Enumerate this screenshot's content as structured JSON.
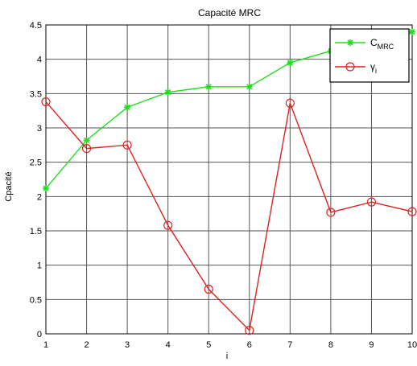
{
  "chart_data": {
    "type": "line",
    "title": "Capacité MRC",
    "xlabel": "i",
    "ylabel": "Cpacité",
    "xlim": [
      1,
      10
    ],
    "ylim": [
      0,
      4.5
    ],
    "grid": true,
    "legend_position": "top-right",
    "x": [
      1,
      2,
      3,
      4,
      5,
      6,
      7,
      8,
      9,
      10
    ],
    "x_ticks": [
      "1",
      "2",
      "3",
      "4",
      "5",
      "6",
      "7",
      "8",
      "9",
      "10"
    ],
    "y_ticks": [
      "0",
      "0.5",
      "1",
      "1.5",
      "2",
      "2.5",
      "3",
      "3.5",
      "4",
      "4.5"
    ],
    "series": [
      {
        "name": "C",
        "name_sub": "MRC",
        "color": "#22dd22",
        "marker": "star",
        "values": [
          2.12,
          2.82,
          3.3,
          3.52,
          3.6,
          3.6,
          3.95,
          4.12,
          4.24,
          4.4
        ]
      },
      {
        "name": "γ",
        "name_sub": "i",
        "color": "#dd2222",
        "marker": "circle",
        "values": [
          3.38,
          2.7,
          2.75,
          1.58,
          0.65,
          0.05,
          3.36,
          1.77,
          1.92,
          1.78
        ]
      }
    ]
  }
}
